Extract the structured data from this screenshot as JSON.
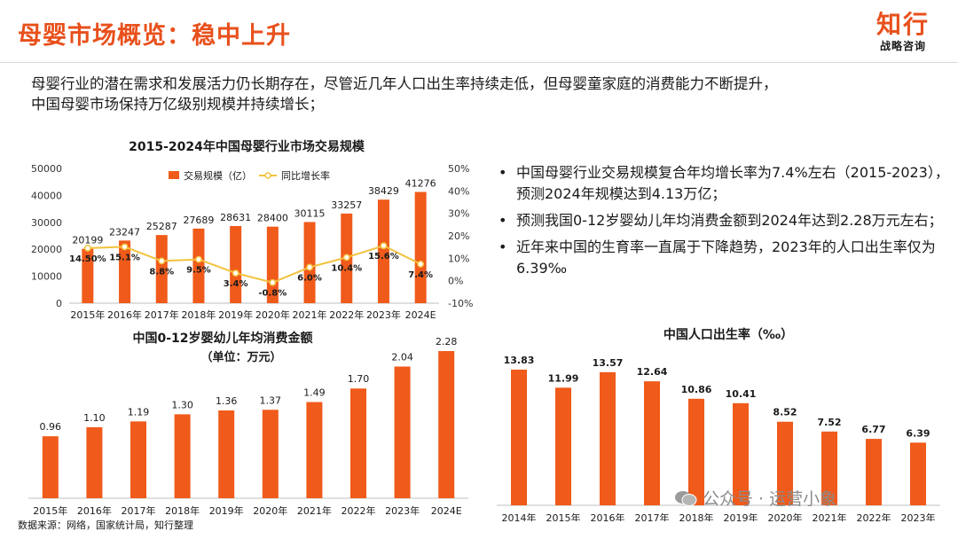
{
  "header": {
    "title": "母婴市场概览：稳中上升",
    "logo_main": "知行",
    "logo_sub": "战略咨询"
  },
  "intro": [
    "母婴行业的潜在需求和发展活力仍长期存在，尽管近几年人口出生率持续走低，但母婴童家庭的消费能力不断提升，",
    "中国母婴市场保持万亿级别规模并持续增长；"
  ],
  "bullets": [
    "中国母婴行业交易规模复合年均增长率为7.4%左右（2015-2023），预测2024年规模达到4.13万亿；",
    "预测我国0-12岁婴幼儿年均消费金额到2024年达到2.28万元左右；",
    "近年来中国的生育率一直属于下降趋势，2023年的人口出生率仅为6.39‰"
  ],
  "footer": {
    "source": "数据来源：网络，国家统计局，知行整理",
    "watermark": "公众号 · 运营小象"
  },
  "colors": {
    "accent": "#e8501c",
    "bar": "#f05a1a",
    "line": "#f3c23d"
  },
  "chart_data": [
    {
      "type": "bar",
      "title": "2015-2024年中国母婴行业市场交易规模",
      "categories": [
        "2015年",
        "2016年",
        "2017年",
        "2018年",
        "2019年",
        "2020年",
        "2021年",
        "2022年",
        "2023年",
        "2024E"
      ],
      "series": [
        {
          "name": "交易规模（亿）",
          "type": "bar",
          "axis": "left",
          "values": [
            20199,
            23247,
            25287,
            27689,
            28631,
            28400,
            30115,
            33257,
            38429,
            41276
          ],
          "labels": [
            "20199",
            "23247",
            "25287",
            "27689",
            "28631",
            "28400",
            "30115",
            "33257",
            "38429",
            "41276"
          ]
        },
        {
          "name": "同比增长率",
          "type": "line",
          "axis": "right",
          "values": [
            14.5,
            15.1,
            8.8,
            9.5,
            3.4,
            -0.8,
            6.0,
            10.4,
            15.6,
            7.4
          ],
          "labels": [
            "14.50%",
            "15.1%",
            "8.8%",
            "9.5%",
            "3.4%",
            "-0.8%",
            "6.0%",
            "10.4%",
            "15.6%",
            "7.4%"
          ]
        }
      ],
      "ylim": [
        0,
        50000
      ],
      "yticks": [
        "0",
        "10000",
        "20000",
        "30000",
        "40000",
        "50000"
      ],
      "y2lim": [
        -10,
        50
      ],
      "y2ticks": [
        "-10%",
        "0%",
        "10%",
        "20%",
        "30%",
        "40%",
        "50%"
      ],
      "legend": "top"
    },
    {
      "type": "bar",
      "title": "中国0-12岁婴幼儿年均消费金额",
      "subtitle": "（单位：万元）",
      "categories": [
        "2015年",
        "2016年",
        "2017年",
        "2018年",
        "2019年",
        "2020年",
        "2021年",
        "2022年",
        "2023年",
        "2024E"
      ],
      "values": [
        0.96,
        1.1,
        1.19,
        1.3,
        1.36,
        1.37,
        1.49,
        1.7,
        2.04,
        2.28
      ],
      "labels": [
        "0.96",
        "1.10",
        "1.19",
        "1.30",
        "1.36",
        "1.37",
        "1.49",
        "1.70",
        "2.04",
        "2.28"
      ],
      "ylim": [
        0,
        2.5
      ]
    },
    {
      "type": "bar",
      "title": "中国人口出生率（‰）",
      "categories": [
        "2014年",
        "2015年",
        "2016年",
        "2017年",
        "2018年",
        "2019年",
        "2020年",
        "2021年",
        "2022年",
        "2023年"
      ],
      "values": [
        13.83,
        11.99,
        13.57,
        12.64,
        10.86,
        10.41,
        8.52,
        7.52,
        6.77,
        6.39
      ],
      "labels": [
        "13.83",
        "11.99",
        "13.57",
        "12.64",
        "10.86",
        "10.41",
        "8.52",
        "7.52",
        "6.77",
        "6.39"
      ],
      "ylim": [
        0,
        15
      ]
    }
  ]
}
